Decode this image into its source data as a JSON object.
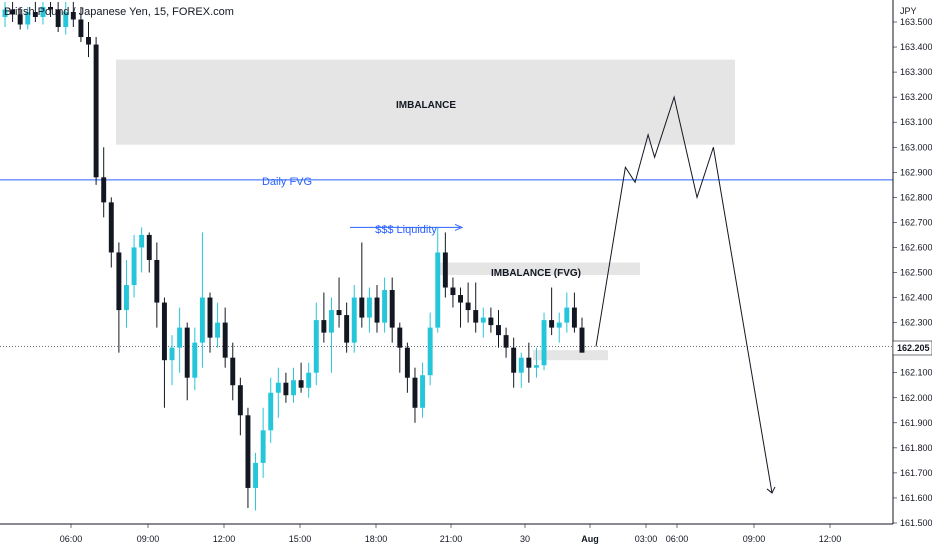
{
  "chart_data": {
    "type": "candlestick",
    "title": "British Pound / Japanese Yen, 15, FOREX.com",
    "currency": "JPY",
    "ylim": [
      161.5,
      163.55
    ],
    "y_ticks": [
      "163.500",
      "163.400",
      "163.300",
      "163.200",
      "163.100",
      "163.000",
      "162.900",
      "162.800",
      "162.700",
      "162.600",
      "162.500",
      "162.400",
      "162.300",
      "162.200",
      "162.100",
      "162.000",
      "161.900",
      "161.800",
      "161.700",
      "161.600",
      "161.500"
    ],
    "x_ticks": [
      "06:00",
      "09:00",
      "12:00",
      "15:00",
      "18:00",
      "21:00",
      "30",
      "Aug",
      "03:00",
      "06:00",
      "09:00",
      "12:00"
    ],
    "current_price_label": "162.205",
    "colors": {
      "up": "#26c6da",
      "down": "#131722",
      "fvg_line": "#2962ff",
      "zone": "#e0e0e0",
      "projection": "#131722"
    },
    "annotations": {
      "imbalance_top": "IMBALANCE",
      "imbalance_fvg": "IMBALANCE (FVG)",
      "daily_fvg": "Daily FVG",
      "liquidity": "$$$ Liquidity"
    },
    "zones": [
      {
        "label": "IMBALANCE",
        "y_top": 163.35,
        "y_bottom": 163.01
      },
      {
        "label": "IMBALANCE (FVG)",
        "y_top": 162.54,
        "y_bottom": 162.49
      },
      {
        "label": "",
        "y_top": 162.19,
        "y_bottom": 162.15
      }
    ],
    "levels": {
      "daily_fvg": 162.87,
      "current": 162.205,
      "liquidity": 162.68
    },
    "candles": [
      {
        "o": 163.52,
        "h": 163.58,
        "l": 163.48,
        "c": 163.55
      },
      {
        "o": 163.55,
        "h": 163.58,
        "l": 163.5,
        "c": 163.53
      },
      {
        "o": 163.53,
        "h": 163.56,
        "l": 163.47,
        "c": 163.49
      },
      {
        "o": 163.49,
        "h": 163.56,
        "l": 163.47,
        "c": 163.54
      },
      {
        "o": 163.54,
        "h": 163.58,
        "l": 163.5,
        "c": 163.52
      },
      {
        "o": 163.52,
        "h": 163.58,
        "l": 163.49,
        "c": 163.56
      },
      {
        "o": 163.56,
        "h": 163.58,
        "l": 163.52,
        "c": 163.55
      },
      {
        "o": 163.55,
        "h": 163.58,
        "l": 163.46,
        "c": 163.48
      },
      {
        "o": 163.48,
        "h": 163.58,
        "l": 163.45,
        "c": 163.54
      },
      {
        "o": 163.54,
        "h": 163.58,
        "l": 163.48,
        "c": 163.51
      },
      {
        "o": 163.51,
        "h": 163.56,
        "l": 163.42,
        "c": 163.44
      },
      {
        "o": 163.44,
        "h": 163.5,
        "l": 163.36,
        "c": 163.41
      },
      {
        "o": 163.41,
        "h": 163.44,
        "l": 162.85,
        "c": 162.88
      },
      {
        "o": 162.88,
        "h": 163.0,
        "l": 162.72,
        "c": 162.78
      },
      {
        "o": 162.78,
        "h": 162.8,
        "l": 162.52,
        "c": 162.58
      },
      {
        "o": 162.58,
        "h": 162.62,
        "l": 162.18,
        "c": 162.35
      },
      {
        "o": 162.35,
        "h": 162.55,
        "l": 162.28,
        "c": 162.45
      },
      {
        "o": 162.45,
        "h": 162.65,
        "l": 162.4,
        "c": 162.6
      },
      {
        "o": 162.6,
        "h": 162.68,
        "l": 162.5,
        "c": 162.65
      },
      {
        "o": 162.65,
        "h": 162.66,
        "l": 162.5,
        "c": 162.55
      },
      {
        "o": 162.55,
        "h": 162.62,
        "l": 162.28,
        "c": 162.38
      },
      {
        "o": 162.38,
        "h": 162.4,
        "l": 161.96,
        "c": 162.15
      },
      {
        "o": 162.15,
        "h": 162.25,
        "l": 162.05,
        "c": 162.2
      },
      {
        "o": 162.2,
        "h": 162.36,
        "l": 162.1,
        "c": 162.28
      },
      {
        "o": 162.28,
        "h": 162.3,
        "l": 161.99,
        "c": 162.08
      },
      {
        "o": 162.08,
        "h": 162.28,
        "l": 162.03,
        "c": 162.22
      },
      {
        "o": 162.22,
        "h": 162.66,
        "l": 162.12,
        "c": 162.4
      },
      {
        "o": 162.4,
        "h": 162.42,
        "l": 162.18,
        "c": 162.24
      },
      {
        "o": 162.24,
        "h": 162.38,
        "l": 162.2,
        "c": 162.3
      },
      {
        "o": 162.3,
        "h": 162.36,
        "l": 162.12,
        "c": 162.16
      },
      {
        "o": 162.16,
        "h": 162.22,
        "l": 161.99,
        "c": 162.05
      },
      {
        "o": 162.05,
        "h": 162.08,
        "l": 161.85,
        "c": 161.93
      },
      {
        "o": 161.93,
        "h": 161.96,
        "l": 161.56,
        "c": 161.64
      },
      {
        "o": 161.64,
        "h": 161.78,
        "l": 161.55,
        "c": 161.74
      },
      {
        "o": 161.74,
        "h": 161.96,
        "l": 161.68,
        "c": 161.87
      },
      {
        "o": 161.87,
        "h": 162.08,
        "l": 161.82,
        "c": 162.02
      },
      {
        "o": 162.02,
        "h": 162.12,
        "l": 161.92,
        "c": 162.06
      },
      {
        "o": 162.06,
        "h": 162.1,
        "l": 161.98,
        "c": 162.01
      },
      {
        "o": 162.01,
        "h": 162.12,
        "l": 161.98,
        "c": 162.07
      },
      {
        "o": 162.07,
        "h": 162.14,
        "l": 162.02,
        "c": 162.04
      },
      {
        "o": 162.04,
        "h": 162.14,
        "l": 162.0,
        "c": 162.1
      },
      {
        "o": 162.1,
        "h": 162.38,
        "l": 162.05,
        "c": 162.31
      },
      {
        "o": 162.31,
        "h": 162.42,
        "l": 162.22,
        "c": 162.26
      },
      {
        "o": 162.26,
        "h": 162.4,
        "l": 162.1,
        "c": 162.35
      },
      {
        "o": 162.35,
        "h": 162.48,
        "l": 162.28,
        "c": 162.33
      },
      {
        "o": 162.33,
        "h": 162.38,
        "l": 162.18,
        "c": 162.22
      },
      {
        "o": 162.22,
        "h": 162.45,
        "l": 162.18,
        "c": 162.4
      },
      {
        "o": 162.4,
        "h": 162.62,
        "l": 162.28,
        "c": 162.32
      },
      {
        "o": 162.32,
        "h": 162.44,
        "l": 162.26,
        "c": 162.4
      },
      {
        "o": 162.4,
        "h": 162.45,
        "l": 162.26,
        "c": 162.3
      },
      {
        "o": 162.3,
        "h": 162.48,
        "l": 162.26,
        "c": 162.43
      },
      {
        "o": 162.43,
        "h": 162.48,
        "l": 162.22,
        "c": 162.28
      },
      {
        "o": 162.28,
        "h": 162.3,
        "l": 162.1,
        "c": 162.2
      },
      {
        "o": 162.2,
        "h": 162.22,
        "l": 162.02,
        "c": 162.08
      },
      {
        "o": 162.08,
        "h": 162.12,
        "l": 161.9,
        "c": 161.96
      },
      {
        "o": 161.96,
        "h": 162.14,
        "l": 161.92,
        "c": 162.09
      },
      {
        "o": 162.09,
        "h": 162.34,
        "l": 162.05,
        "c": 162.28
      },
      {
        "o": 162.28,
        "h": 162.68,
        "l": 162.26,
        "c": 162.58
      },
      {
        "o": 162.58,
        "h": 162.66,
        "l": 162.4,
        "c": 162.44
      },
      {
        "o": 162.44,
        "h": 162.48,
        "l": 162.36,
        "c": 162.41
      },
      {
        "o": 162.41,
        "h": 162.44,
        "l": 162.28,
        "c": 162.38
      },
      {
        "o": 162.38,
        "h": 162.46,
        "l": 162.3,
        "c": 162.35
      },
      {
        "o": 162.35,
        "h": 162.46,
        "l": 162.26,
        "c": 162.3
      },
      {
        "o": 162.3,
        "h": 162.36,
        "l": 162.24,
        "c": 162.32
      },
      {
        "o": 162.32,
        "h": 162.36,
        "l": 162.26,
        "c": 162.29
      },
      {
        "o": 162.29,
        "h": 162.35,
        "l": 162.2,
        "c": 162.25
      },
      {
        "o": 162.25,
        "h": 162.28,
        "l": 162.16,
        "c": 162.2
      },
      {
        "o": 162.2,
        "h": 162.24,
        "l": 162.04,
        "c": 162.1
      },
      {
        "o": 162.1,
        "h": 162.18,
        "l": 162.04,
        "c": 162.16
      },
      {
        "o": 162.16,
        "h": 162.22,
        "l": 162.06,
        "c": 162.12
      },
      {
        "o": 162.12,
        "h": 162.2,
        "l": 162.08,
        "c": 162.13
      },
      {
        "o": 162.13,
        "h": 162.34,
        "l": 162.11,
        "c": 162.31
      },
      {
        "o": 162.31,
        "h": 162.44,
        "l": 162.25,
        "c": 162.28
      },
      {
        "o": 162.28,
        "h": 162.34,
        "l": 162.22,
        "c": 162.3
      },
      {
        "o": 162.3,
        "h": 162.42,
        "l": 162.26,
        "c": 162.36
      },
      {
        "o": 162.36,
        "h": 162.42,
        "l": 162.26,
        "c": 162.28
      },
      {
        "o": 162.28,
        "h": 162.32,
        "l": 162.2,
        "c": 162.18
      }
    ],
    "projection": [
      [
        0.0,
        162.205
      ],
      [
        0.167,
        162.92
      ],
      [
        0.222,
        162.86
      ],
      [
        0.296,
        163.05
      ],
      [
        0.333,
        162.96
      ],
      [
        0.444,
        163.2
      ],
      [
        0.574,
        162.8
      ],
      [
        0.667,
        163.0
      ],
      [
        1.0,
        161.62
      ]
    ]
  }
}
